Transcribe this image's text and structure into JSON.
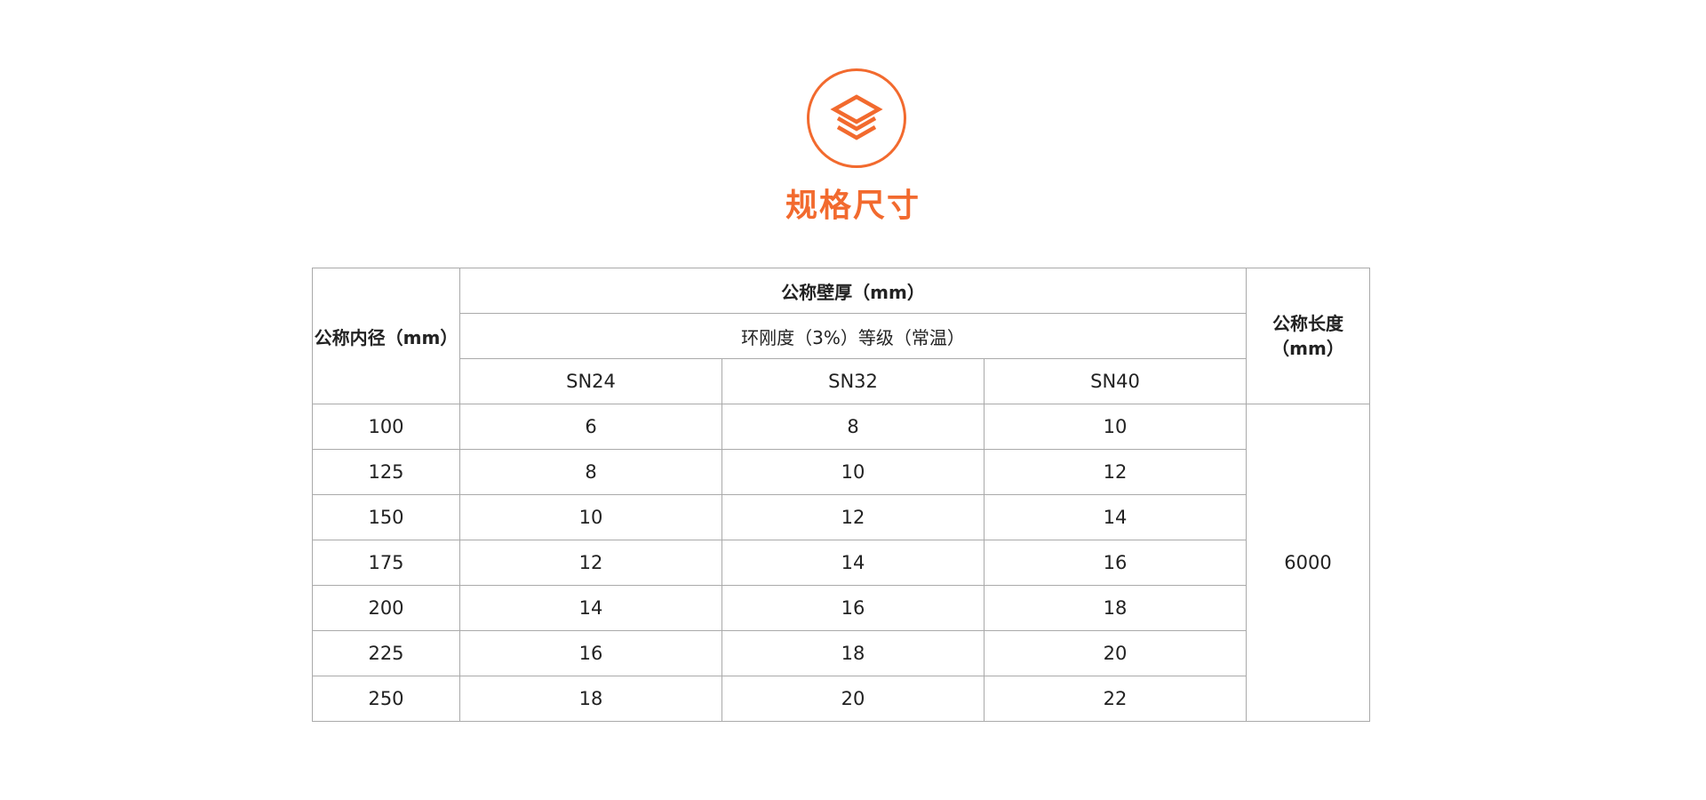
{
  "header": {
    "icon": "layers-icon",
    "title": "规格尺寸",
    "accent_color": "#f26a2e"
  },
  "table": {
    "col_inner_diameter": "公称内径（mm）",
    "col_wall_thickness": "公称壁厚（mm）",
    "stiffness_grade": "环刚度（3%）等级（常温）",
    "col_length": "公称长度（mm）",
    "grades": [
      "SN24",
      "SN32",
      "SN40"
    ],
    "length_value": "6000",
    "rows": [
      [
        "100",
        "6",
        "8",
        "10"
      ],
      [
        "125",
        "8",
        "10",
        "12"
      ],
      [
        "150",
        "10",
        "12",
        "14"
      ],
      [
        "175",
        "12",
        "14",
        "16"
      ],
      [
        "200",
        "14",
        "16",
        "18"
      ],
      [
        "225",
        "16",
        "18",
        "20"
      ],
      [
        "250",
        "18",
        "20",
        "22"
      ]
    ]
  }
}
